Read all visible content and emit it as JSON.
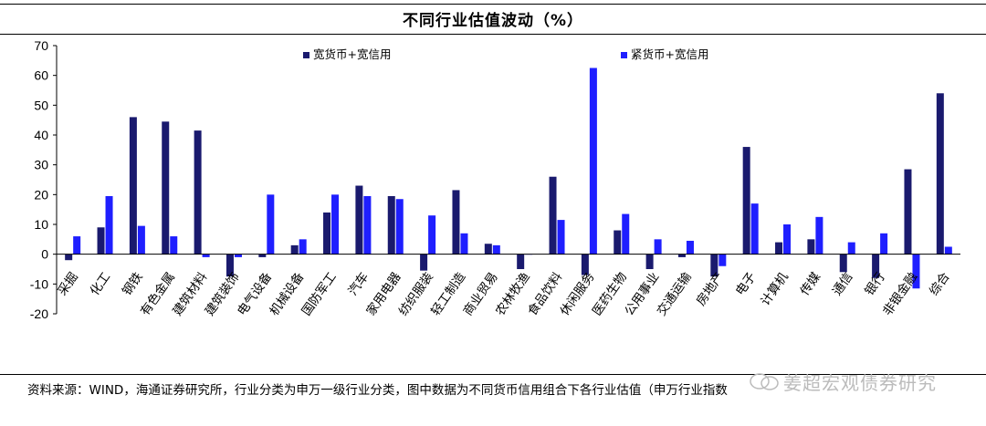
{
  "header": {
    "title": "不同行业估值波动（%）"
  },
  "footer": {
    "source": "资料来源：WIND，海通证券研究所，行业分类为申万一级行业分类，图中数据为不同货币信用组合下各行业估值（申万行业指数",
    "watermark": "姜超宏观债券研究"
  },
  "chart_data": {
    "type": "bar",
    "title": "不同行业估值波动（%）",
    "ylim": [
      -20,
      70
    ],
    "yticks": [
      -20,
      -10,
      0,
      10,
      20,
      30,
      40,
      50,
      60,
      70
    ],
    "grid": false,
    "legend_position": "top",
    "categories": [
      "采掘",
      "化工",
      "钢铁",
      "有色金属",
      "建筑材料",
      "建筑装饰",
      "电气设备",
      "机械设备",
      "国防军工",
      "汽车",
      "家用电器",
      "纺织服装",
      "轻工制造",
      "商业贸易",
      "农林牧渔",
      "食品饮料",
      "休闲服务",
      "医药生物",
      "公用事业",
      "交通运输",
      "房地产",
      "电子",
      "计算机",
      "传媒",
      "通信",
      "银行",
      "非银金融",
      "综合"
    ],
    "series": [
      {
        "name": "宽货币+宽信用",
        "color": "#1a1a6e",
        "values": [
          -2,
          9,
          46,
          44.5,
          41.5,
          -7.5,
          -1,
          3,
          14,
          23,
          19.5,
          -5.5,
          21.5,
          3.5,
          -5,
          26,
          -7,
          8,
          -5,
          -1,
          -7.5,
          36,
          4,
          5,
          -6,
          -8,
          28.5,
          54
        ]
      },
      {
        "name": "紧货币+宽信用",
        "color": "#1f1fff",
        "values": [
          6,
          19.5,
          9.5,
          6,
          -1,
          -1,
          20,
          5,
          20,
          19.5,
          18.5,
          13,
          7,
          3,
          0,
          11.5,
          62.5,
          13.5,
          5,
          4.5,
          -4,
          17,
          10,
          12.5,
          4,
          7,
          -11.5,
          2.5
        ]
      }
    ]
  }
}
